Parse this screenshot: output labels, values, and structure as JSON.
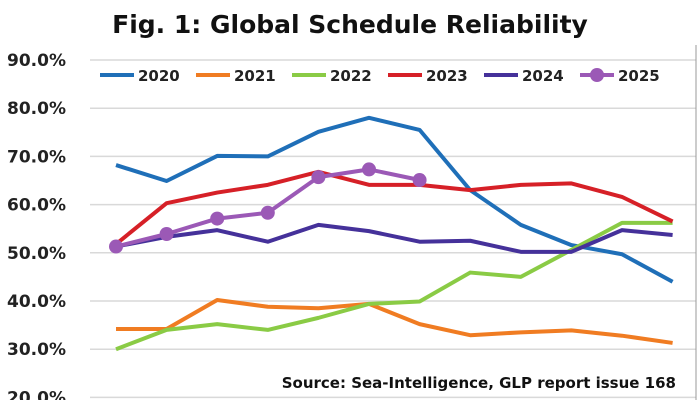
{
  "chart_data": {
    "type": "line",
    "title": "Fig. 1: Global Schedule Reliability",
    "xlabel": "",
    "ylabel": "",
    "ylim": [
      20,
      90
    ],
    "yticks": [
      "90.0%",
      "80.0%",
      "70.0%",
      "60.0%",
      "50.0%",
      "40.0%",
      "30.0%",
      "20.0%"
    ],
    "grid": true,
    "legend_position": "top",
    "annotation": "Source: Sea-Intelligence, GLP report issue 168",
    "series": [
      {
        "name": "2020",
        "color": "#1f6fb8",
        "values": [
          68.2,
          64.9,
          70.1,
          70.0,
          75.1,
          78.0,
          75.5,
          63.0,
          55.8,
          51.6,
          49.7,
          44.0
        ]
      },
      {
        "name": "2021",
        "color": "#f07c22",
        "values": [
          34.2,
          34.2,
          40.2,
          38.8,
          38.5,
          39.4,
          35.2,
          32.9,
          33.5,
          33.9,
          32.8,
          31.3
        ]
      },
      {
        "name": "2022",
        "color": "#8acb45",
        "values": [
          30.0,
          34.0,
          35.2,
          34.0,
          36.5,
          39.4,
          39.9,
          45.9,
          45.0,
          50.6,
          56.2,
          56.2
        ]
      },
      {
        "name": "2023",
        "color": "#d62027",
        "values": [
          51.8,
          60.3,
          62.5,
          64.1,
          66.8,
          64.1,
          64.1,
          63.0,
          64.1,
          64.4,
          61.6,
          56.5
        ]
      },
      {
        "name": "2024",
        "color": "#45319a",
        "values": [
          51.3,
          53.3,
          54.7,
          52.3,
          55.8,
          54.5,
          52.3,
          52.5,
          50.2,
          50.2,
          54.7,
          53.7
        ]
      },
      {
        "name": "2025",
        "color": "#9b59b6",
        "markers": true,
        "values": [
          51.3,
          53.9,
          57.1,
          58.3,
          65.7,
          67.3,
          65.1
        ]
      }
    ]
  }
}
